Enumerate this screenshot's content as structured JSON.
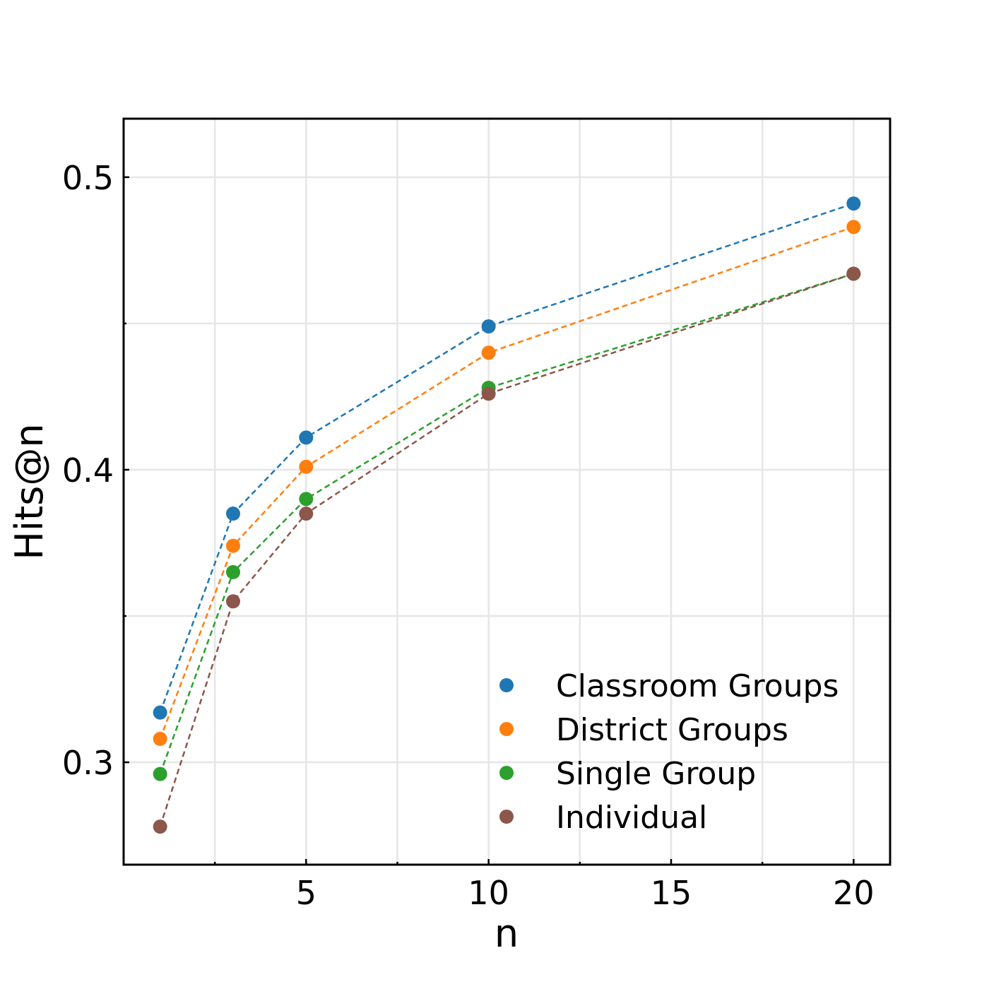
{
  "chart_data": {
    "type": "line",
    "xlabel": "n",
    "ylabel": "Hits@n",
    "xlim": [
      0,
      21
    ],
    "ylim": [
      0.265,
      0.52
    ],
    "x": [
      1,
      3,
      5,
      10,
      20
    ],
    "x_major_ticks": [
      5,
      10,
      15,
      20
    ],
    "x_minor_ticks": [
      2.5,
      7.5,
      12.5,
      17.5
    ],
    "y_major_ticks": [
      0.3,
      0.4,
      0.5
    ],
    "y_minor_ticks": [
      0.35,
      0.45
    ],
    "x_tick_labels": [
      "5",
      "10",
      "15",
      "20"
    ],
    "y_tick_labels": [
      "0.3",
      "0.4",
      "0.5"
    ],
    "grid": true,
    "line_style": "dashed",
    "legend_position": "lower-right",
    "series": [
      {
        "name": "Classroom Groups",
        "color": "#1f77b4",
        "values": [
          0.317,
          0.385,
          0.411,
          0.449,
          0.491
        ]
      },
      {
        "name": "District Groups",
        "color": "#ff7f0e",
        "values": [
          0.308,
          0.374,
          0.401,
          0.44,
          0.483
        ]
      },
      {
        "name": "Single Group",
        "color": "#2ca02c",
        "values": [
          0.296,
          0.365,
          0.39,
          0.428,
          0.467
        ]
      },
      {
        "name": "Individual",
        "color": "#8c564b",
        "values": [
          0.278,
          0.355,
          0.385,
          0.426,
          0.467
        ]
      }
    ]
  }
}
